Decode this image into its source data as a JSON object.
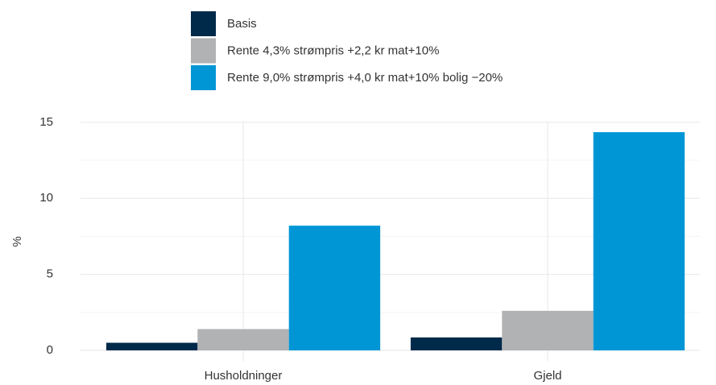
{
  "chart_data": {
    "type": "bar",
    "categories": [
      "Husholdninger",
      "Gjeld"
    ],
    "series": [
      {
        "name": "Basis",
        "color": "#002a4a",
        "values": [
          0.5,
          0.85
        ]
      },
      {
        "name": "Rente 4,3% strømpris +2,2 kr mat+10%",
        "color": "#b1b2b4",
        "values": [
          1.4,
          2.6
        ]
      },
      {
        "name": "Rente 9,0% strømpris +4,0 kr mat+10% bolig −20%",
        "color": "#0096d6",
        "values": [
          8.2,
          14.35
        ]
      }
    ],
    "ylabel": "%",
    "ylim": [
      -0.72,
      15.07
    ],
    "yticks": [
      0,
      5,
      10,
      15
    ],
    "grid": true,
    "legend": "top"
  }
}
